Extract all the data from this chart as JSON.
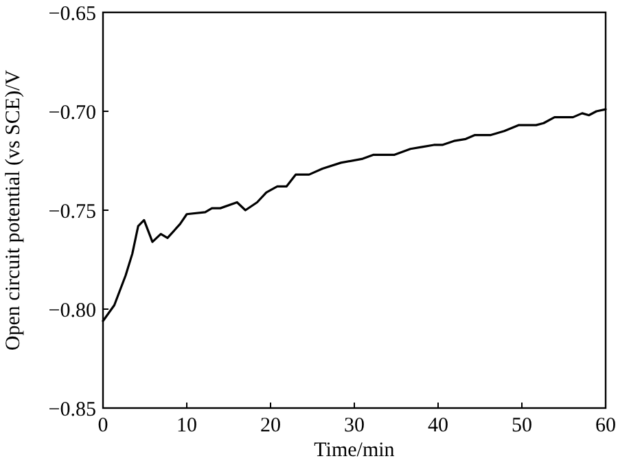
{
  "chart_data": {
    "type": "line",
    "xlabel": "Time/min",
    "ylabel": "Open circuit potential (vs SCE)/V",
    "xlim": [
      0,
      60
    ],
    "xticks": [
      0,
      10,
      20,
      30,
      40,
      50,
      60
    ],
    "ylim": [
      -0.85,
      -0.65
    ],
    "yticks": [
      {
        "value": -0.85,
        "label": "−0.85"
      },
      {
        "value": -0.8,
        "label": "−0.80"
      },
      {
        "value": -0.75,
        "label": "−0.75"
      },
      {
        "value": -0.7,
        "label": "−0.70"
      },
      {
        "value": -0.65,
        "label": "−0.65"
      }
    ],
    "grid": false,
    "marker": "none",
    "line_style": "solid",
    "series": [
      {
        "color": "#000000",
        "x": [
          0,
          1.35,
          2.7,
          3.5,
          4.2,
          4.9,
          5.9,
          6.9,
          7.7,
          9.2,
          10,
          12.2,
          13,
          14,
          16,
          17,
          18.4,
          19.5,
          20.8,
          21.9,
          23,
          24.6,
          26.2,
          28.4,
          31,
          32.3,
          34.8,
          36.7,
          38.1,
          39.5,
          40.5,
          41.9,
          43.3,
          44.4,
          46.3,
          47.9,
          49.6,
          51.7,
          52.6,
          53.9,
          56.1,
          57.2,
          58,
          58.9,
          60
        ],
        "values": [
          -0.806,
          -0.798,
          -0.783,
          -0.772,
          -0.758,
          -0.755,
          -0.766,
          -0.762,
          -0.764,
          -0.757,
          -0.752,
          -0.751,
          -0.749,
          -0.749,
          -0.746,
          -0.75,
          -0.746,
          -0.741,
          -0.738,
          -0.738,
          -0.732,
          -0.732,
          -0.729,
          -0.726,
          -0.724,
          -0.722,
          -0.722,
          -0.719,
          -0.718,
          -0.717,
          -0.717,
          -0.715,
          -0.714,
          -0.712,
          -0.712,
          -0.71,
          -0.707,
          -0.707,
          -0.706,
          -0.703,
          -0.703,
          -0.701,
          -0.702,
          -0.7,
          -0.699
        ]
      }
    ]
  }
}
